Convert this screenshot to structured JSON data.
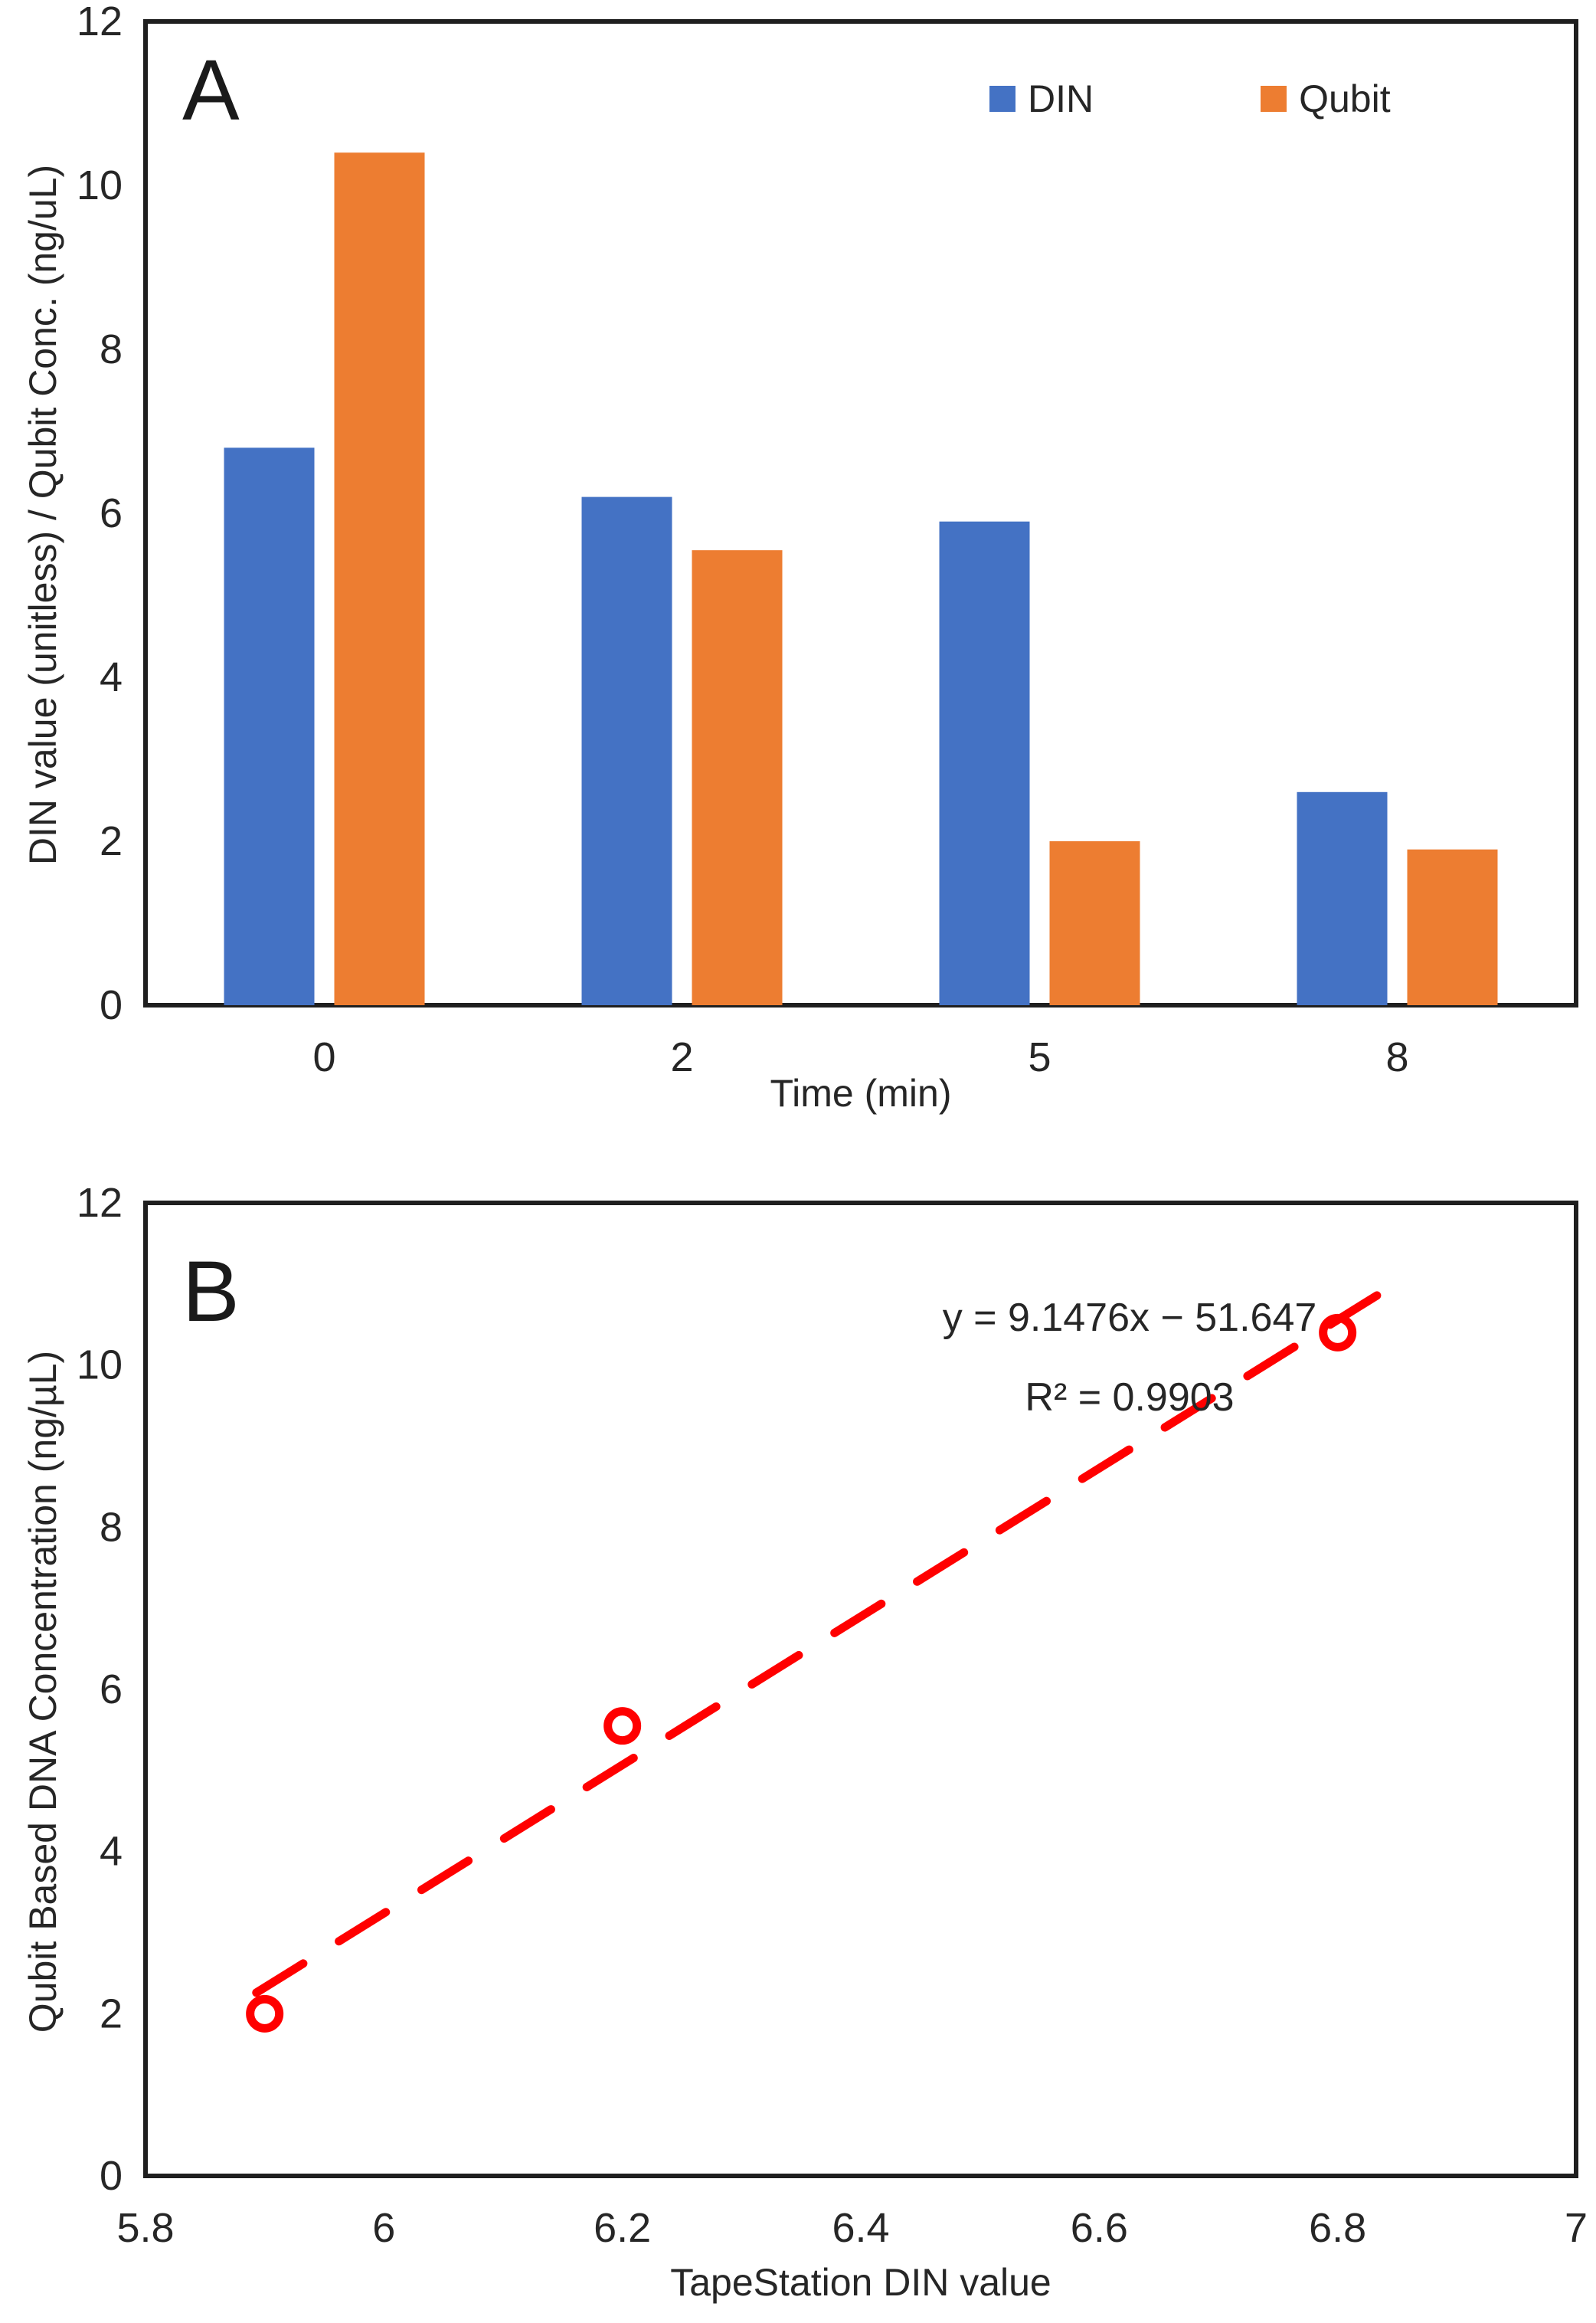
{
  "figure": {
    "background": "#ffffff",
    "axis_color": "#262626",
    "panel_a_letter": "A",
    "panel_b_letter": "B"
  },
  "chart_data": [
    {
      "type": "bar",
      "panel_label": "A",
      "title": "",
      "categories": [
        "0",
        "2",
        "5",
        "8"
      ],
      "series": [
        {
          "name": "DIN",
          "color": "#4472C4",
          "values": [
            6.8,
            6.2,
            5.9,
            2.6
          ]
        },
        {
          "name": "Qubit",
          "color": "#ED7D31",
          "values": [
            10.4,
            5.55,
            2.0,
            1.9
          ]
        }
      ],
      "xlabel": "Time (min)",
      "ylabel": "DIN value (unitless) / Qubit Conc. (ng/uL)",
      "ylim": [
        0,
        12
      ],
      "y_ticks": [
        "0",
        "2",
        "4",
        "6",
        "8",
        "10",
        "12"
      ],
      "grid": false,
      "legend_position": "top-inside"
    },
    {
      "type": "scatter",
      "panel_label": "B",
      "title": "",
      "points": [
        {
          "x": 5.9,
          "y": 2.0
        },
        {
          "x": 6.2,
          "y": 5.55
        },
        {
          "x": 6.8,
          "y": 10.4
        }
      ],
      "marker": {
        "shape": "open-circle",
        "color": "#FF0000"
      },
      "trendline": {
        "style": "dashed",
        "color": "#FF0000",
        "slope": 9.1476,
        "intercept": -51.647,
        "x_start": 5.893,
        "x_end": 6.853,
        "equation_label": "y = 9.1476x − 51.647",
        "r_squared_label": "R² = 0.9903"
      },
      "xlabel": "TapeStation DIN value",
      "ylabel": "Qubit Based DNA Concentration (ng/µL)",
      "xlim": [
        5.8,
        7.0
      ],
      "x_ticks": [
        "5.8",
        "6",
        "6.2",
        "6.4",
        "6.6",
        "6.8",
        "7"
      ],
      "ylim": [
        0,
        12
      ],
      "y_ticks": [
        "0",
        "2",
        "4",
        "6",
        "8",
        "10",
        "12"
      ],
      "grid": false,
      "legend_position": "none"
    }
  ]
}
